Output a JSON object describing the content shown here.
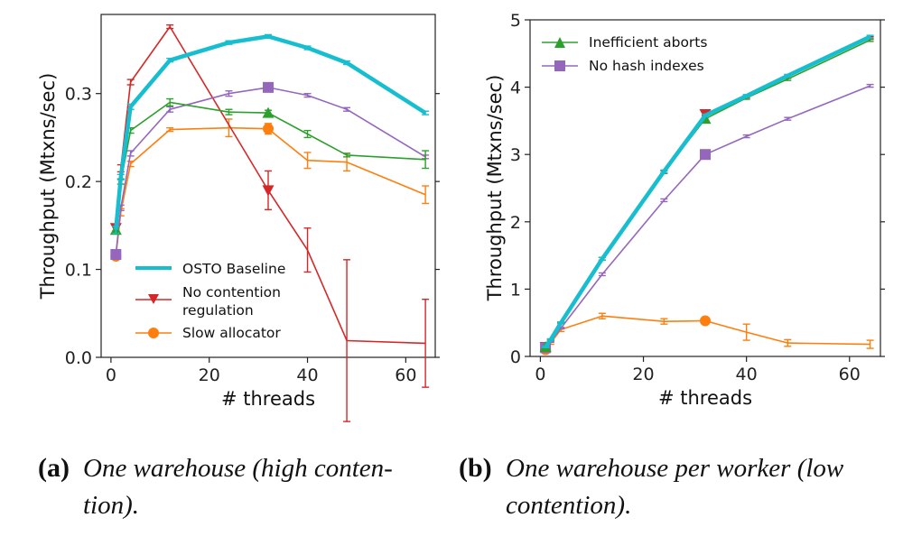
{
  "chart_data": [
    {
      "type": "line",
      "title": "",
      "xlabel": "# threads",
      "ylabel": "Throughput (Mtxns/sec)",
      "xlim": [
        -2,
        66
      ],
      "ylim": [
        0,
        0.39
      ],
      "xticks": [
        0,
        20,
        40,
        60
      ],
      "xtick_labels": [
        "0",
        "20",
        "40",
        "60"
      ],
      "yticks": [
        0.0,
        0.1,
        0.2,
        0.3
      ],
      "ytick_labels": [
        "0.0",
        "0.1",
        "0.2",
        "0.3"
      ],
      "legend_position": "lower-left",
      "caption": {
        "label": "(a)",
        "text_line1": "One warehouse (high conten-",
        "text_line2": "tion)."
      },
      "series": [
        {
          "name": "OSTO Baseline",
          "key": "osto",
          "color": "#17becf",
          "marker": "none",
          "in_legend": true,
          "x": [
            1,
            2,
            4,
            12,
            24,
            32,
            40,
            48,
            64
          ],
          "y": [
            0.145,
            0.205,
            0.285,
            0.338,
            0.358,
            0.365,
            0.352,
            0.335,
            0.278
          ],
          "err": [
            0.004,
            0.003,
            0.003,
            0.002,
            0.002,
            0.002,
            0.002,
            0.002,
            0.002
          ]
        },
        {
          "name": "No contention regulation",
          "name_line1": "No contention",
          "name_line2": "regulation",
          "key": "nocont",
          "color": "#d62728",
          "marker": "triangle-down",
          "in_legend": true,
          "x": [
            1,
            2,
            4,
            12,
            32,
            40,
            48,
            64
          ],
          "y": [
            0.147,
            0.215,
            0.313,
            0.376,
            0.19,
            0.122,
            0.019,
            0.016
          ],
          "err": [
            0.003,
            0.004,
            0.003,
            0.002,
            0.022,
            0.025,
            0.092,
            0.05
          ],
          "marker_x": [
            1,
            32
          ]
        },
        {
          "name": "Slow allocator",
          "key": "slow",
          "color": "#ff7f0e",
          "marker": "circle",
          "in_legend": true,
          "x": [
            1,
            2,
            4,
            12,
            24,
            32,
            40,
            48,
            64
          ],
          "y": [
            0.115,
            0.165,
            0.22,
            0.259,
            0.261,
            0.26,
            0.224,
            0.222,
            0.185
          ],
          "err": [
            0.003,
            0.004,
            0.003,
            0.002,
            0.01,
            0.006,
            0.009,
            0.01,
            0.01
          ],
          "marker_x": [
            1,
            32
          ]
        },
        {
          "name": "Inefficient aborts",
          "key": "ineff",
          "color": "#2ca02c",
          "marker": "triangle-up",
          "in_legend": false,
          "x": [
            1,
            2,
            4,
            12,
            24,
            32,
            40,
            48,
            64
          ],
          "y": [
            0.145,
            0.2,
            0.258,
            0.29,
            0.279,
            0.278,
            0.254,
            0.23,
            0.225
          ],
          "err": [
            0.003,
            0.003,
            0.003,
            0.004,
            0.003,
            0.003,
            0.004,
            0.002,
            0.01
          ],
          "marker_x": [
            1,
            32
          ]
        },
        {
          "name": "No hash indexes",
          "key": "nohash",
          "color": "#9467bd",
          "marker": "square",
          "in_legend": false,
          "x": [
            1,
            2,
            4,
            12,
            24,
            32,
            40,
            48,
            64
          ],
          "y": [
            0.117,
            0.17,
            0.232,
            0.282,
            0.3,
            0.307,
            0.298,
            0.282,
            0.228
          ],
          "err": [
            0.003,
            0.003,
            0.003,
            0.003,
            0.003,
            0.003,
            0.002,
            0.002,
            0.002
          ],
          "marker_x": [
            1,
            32
          ]
        }
      ]
    },
    {
      "type": "line",
      "title": "",
      "xlabel": "# threads",
      "ylabel": "Throughput (Mtxns/sec)",
      "xlim": [
        -2,
        66
      ],
      "ylim": [
        0,
        5
      ],
      "xticks": [
        0,
        20,
        40,
        60
      ],
      "xtick_labels": [
        "0",
        "20",
        "40",
        "60"
      ],
      "yticks": [
        0,
        1,
        2,
        3,
        4,
        5
      ],
      "ytick_labels": [
        "0",
        "1",
        "2",
        "3",
        "4",
        "5"
      ],
      "legend_position": "upper-left",
      "caption": {
        "label": "(b)",
        "text_line1": "One warehouse per worker (low",
        "text_line2": "contention)."
      },
      "series": [
        {
          "name": "OSTO Baseline",
          "key": "osto",
          "color": "#17becf",
          "marker": "none",
          "in_legend": false,
          "x": [
            1,
            2,
            4,
            12,
            24,
            32,
            40,
            48,
            64
          ],
          "y": [
            0.14,
            0.25,
            0.5,
            1.45,
            2.75,
            3.58,
            3.87,
            4.17,
            4.75
          ],
          "err": [
            0.01,
            0.01,
            0.01,
            0.02,
            0.02,
            0.02,
            0.02,
            0.02,
            0.02
          ]
        },
        {
          "name": "No contention regulation",
          "key": "nocont",
          "color": "#d62728",
          "marker": "triangle-down",
          "in_legend": false,
          "x": [
            1,
            2,
            4,
            12,
            24,
            32,
            40,
            48,
            64
          ],
          "y": [
            0.14,
            0.25,
            0.5,
            1.45,
            2.74,
            3.6,
            3.86,
            4.15,
            4.73
          ],
          "err": [
            0.01,
            0.01,
            0.01,
            0.02,
            0.02,
            0.02,
            0.02,
            0.02,
            0.02
          ],
          "marker_x": [
            1,
            32
          ]
        },
        {
          "name": "Slow allocator",
          "key": "slow",
          "color": "#ff7f0e",
          "marker": "circle",
          "in_legend": false,
          "x": [
            1,
            2,
            4,
            12,
            24,
            32,
            40,
            48,
            64
          ],
          "y": [
            0.1,
            0.2,
            0.4,
            0.6,
            0.52,
            0.53,
            0.36,
            0.2,
            0.18
          ],
          "err": [
            0.02,
            0.02,
            0.03,
            0.04,
            0.04,
            0.03,
            0.12,
            0.05,
            0.06
          ],
          "marker_x": [
            1,
            32
          ]
        },
        {
          "name": "Inefficient aborts",
          "key": "ineff",
          "color": "#2ca02c",
          "marker": "triangle-up",
          "in_legend": true,
          "x": [
            1,
            2,
            4,
            12,
            24,
            32,
            40,
            48,
            64
          ],
          "y": [
            0.14,
            0.25,
            0.5,
            1.45,
            2.74,
            3.53,
            3.84,
            4.12,
            4.7
          ],
          "err": [
            0.01,
            0.01,
            0.01,
            0.02,
            0.02,
            0.02,
            0.02,
            0.02,
            0.02
          ],
          "marker_x": [
            1,
            32
          ]
        },
        {
          "name": "No hash indexes",
          "key": "nohash",
          "color": "#9467bd",
          "marker": "square",
          "in_legend": true,
          "x": [
            1,
            2,
            4,
            12,
            24,
            32,
            40,
            48,
            64
          ],
          "y": [
            0.13,
            0.22,
            0.42,
            1.22,
            2.32,
            3.0,
            3.27,
            3.53,
            4.02
          ],
          "err": [
            0.01,
            0.01,
            0.01,
            0.02,
            0.02,
            0.02,
            0.02,
            0.02,
            0.02
          ],
          "marker_x": [
            1,
            32
          ]
        }
      ]
    }
  ]
}
